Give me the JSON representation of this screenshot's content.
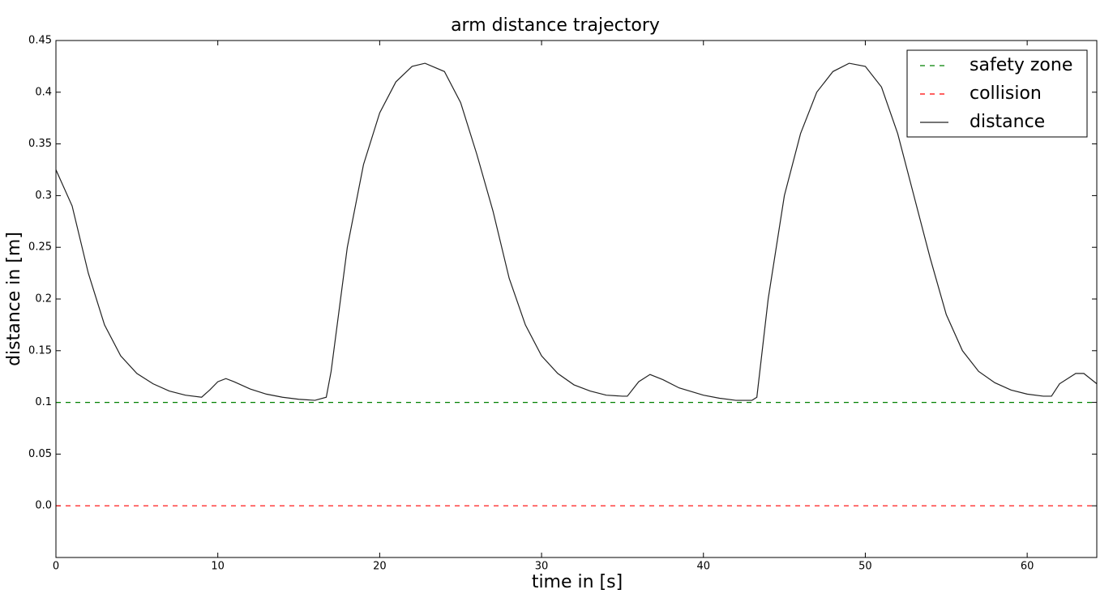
{
  "chart_data": {
    "type": "line",
    "title": "arm distance trajectory",
    "x_label": "time in [s]",
    "y_label": "distance in [m]",
    "xlim": [
      0,
      64.3
    ],
    "ylim": [
      -0.05,
      0.45
    ],
    "xticks": [
      0,
      10,
      20,
      30,
      40,
      50,
      60
    ],
    "yticks": [
      {
        "value": 0,
        "label": "0.0"
      },
      0.05,
      0.1,
      0.15,
      0.2,
      0.25,
      0.3,
      0.35,
      0.4,
      0.45
    ],
    "legend": "upper right",
    "grid": false,
    "series": [
      {
        "name": "safety zone",
        "color": "#008000",
        "linestyle": "dashed",
        "x": [
          0,
          64.3
        ],
        "values": [
          0.1,
          0.1
        ]
      },
      {
        "name": "collision",
        "color": "#ff0000",
        "linestyle": "dashed",
        "x": [
          0,
          64.3
        ],
        "values": [
          0,
          0
        ]
      },
      {
        "name": "distance",
        "color": "#222222",
        "linestyle": "solid",
        "x": [
          0,
          1,
          2,
          3,
          4,
          5,
          6,
          7,
          8,
          9,
          9.5,
          10,
          10.5,
          11,
          12,
          13,
          14,
          15,
          16,
          16.7,
          17,
          18,
          19,
          20,
          21,
          22,
          22.8,
          24,
          25,
          26,
          27,
          28,
          29,
          30,
          31,
          32,
          33,
          34,
          35,
          35.3,
          36,
          36.7,
          37.5,
          38.5,
          40,
          41,
          42,
          43,
          43.3,
          44,
          45,
          46,
          47,
          48,
          49,
          50,
          51,
          52,
          53,
          54,
          55,
          56,
          57,
          58,
          59,
          60,
          61,
          61.5,
          62,
          63,
          63.5,
          64.3
        ],
        "values": [
          0.325,
          0.29,
          0.225,
          0.175,
          0.145,
          0.128,
          0.118,
          0.111,
          0.107,
          0.105,
          0.112,
          0.12,
          0.123,
          0.12,
          0.113,
          0.108,
          0.105,
          0.103,
          0.102,
          0.105,
          0.13,
          0.25,
          0.33,
          0.38,
          0.41,
          0.425,
          0.428,
          0.42,
          0.39,
          0.34,
          0.285,
          0.22,
          0.175,
          0.145,
          0.128,
          0.117,
          0.111,
          0.107,
          0.106,
          0.106,
          0.12,
          0.127,
          0.122,
          0.114,
          0.107,
          0.104,
          0.102,
          0.102,
          0.105,
          0.2,
          0.3,
          0.36,
          0.4,
          0.42,
          0.428,
          0.425,
          0.405,
          0.36,
          0.3,
          0.24,
          0.185,
          0.15,
          0.13,
          0.119,
          0.112,
          0.108,
          0.106,
          0.106,
          0.118,
          0.128,
          0.128,
          0.118
        ]
      }
    ]
  }
}
